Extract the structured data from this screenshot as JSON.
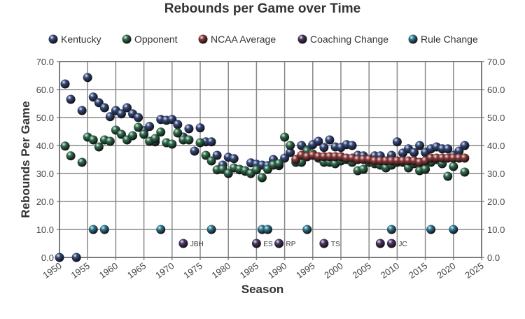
{
  "chart_data": {
    "type": "scatter",
    "title": "Rebounds per Game over Time",
    "xlabel": "Season",
    "ylabel": "Rebounds Per Game",
    "xlim": [
      1950,
      2025
    ],
    "ylim": [
      0,
      70
    ],
    "xticks": [
      "1950",
      "1955",
      "1960",
      "1965",
      "1970",
      "1975",
      "1980",
      "1985",
      "1990",
      "1995",
      "2000",
      "2005",
      "2010",
      "2015",
      "2020",
      "2025"
    ],
    "yticks": [
      "0.0",
      "10.0",
      "20.0",
      "30.0",
      "40.0",
      "50.0",
      "60.0",
      "70.0"
    ],
    "grid": true,
    "legend_position": "top",
    "series": [
      {
        "name": "Kentucky",
        "color": "#34477a",
        "x": [
          1950,
          1951,
          1952,
          1953,
          1954,
          1955,
          1956,
          1957,
          1958,
          1959,
          1960,
          1961,
          1962,
          1963,
          1964,
          1965,
          1966,
          1967,
          1968,
          1969,
          1970,
          1971,
          1972,
          1973,
          1974,
          1975,
          1976,
          1977,
          1978,
          1979,
          1980,
          1981,
          1982,
          1983,
          1984,
          1985,
          1986,
          1987,
          1988,
          1989,
          1990,
          1991,
          1993,
          1994,
          1995,
          1996,
          1997,
          1998,
          1999,
          2000,
          2001,
          2002,
          2003,
          2004,
          2005,
          2006,
          2007,
          2008,
          2009,
          2010,
          2011,
          2012,
          2013,
          2014,
          2015,
          2016,
          2017,
          2018,
          2019,
          2020,
          2021,
          2022
        ],
        "y": [
          0,
          62,
          56.5,
          0,
          52.5,
          64.3,
          57.3,
          55.3,
          53.5,
          50.3,
          52.5,
          51.3,
          53.5,
          51.3,
          50,
          45.3,
          46.8,
          41.3,
          49.3,
          49,
          49.3,
          47.5,
          43,
          46,
          38,
          46.3,
          41.3,
          41.3,
          36.5,
          33,
          35.8,
          35.3,
          31.3,
          30.8,
          33.8,
          33.3,
          33,
          32.8,
          35,
          32.8,
          35.5,
          37.5,
          40,
          38.3,
          40.3,
          41.5,
          39.3,
          42,
          39.5,
          39.3,
          40.3,
          40,
          36.5,
          36.3,
          35,
          36.3,
          36.3,
          33.3,
          36.5,
          41.3,
          37.3,
          38.8,
          37.5,
          40,
          37.5,
          38.8,
          39.5,
          38.8,
          38.8,
          36.5,
          38,
          40
        ]
      },
      {
        "name": "Opponent",
        "color": "#2f6e4c",
        "x": [
          1951,
          1952,
          1954,
          1955,
          1956,
          1957,
          1958,
          1959,
          1960,
          1961,
          1962,
          1963,
          1964,
          1965,
          1966,
          1967,
          1968,
          1969,
          1970,
          1971,
          1972,
          1973,
          1975,
          1976,
          1977,
          1978,
          1979,
          1980,
          1981,
          1982,
          1983,
          1984,
          1985,
          1986,
          1987,
          1988,
          1989,
          1990,
          1991,
          1992,
          1993,
          1994,
          1995,
          1996,
          1997,
          1998,
          1999,
          2000,
          2001,
          2002,
          2003,
          2004,
          2005,
          2006,
          2007,
          2008,
          2009,
          2010,
          2011,
          2012,
          2013,
          2014,
          2015,
          2016,
          2017,
          2018,
          2019,
          2020,
          2021,
          2022
        ],
        "y": [
          39.8,
          36.3,
          34,
          43,
          42,
          39.5,
          42,
          41.5,
          45.5,
          44,
          42,
          43.5,
          46.5,
          44,
          41.5,
          42.5,
          44.8,
          41,
          40.5,
          44.5,
          42,
          42,
          41,
          36.5,
          34.5,
          31.3,
          31.5,
          30,
          32,
          31.5,
          31,
          30,
          31.3,
          28.5,
          31.5,
          33,
          33.5,
          43,
          40,
          34,
          34,
          38,
          37,
          35.5,
          34,
          34,
          33.5,
          34.5,
          35,
          34,
          31,
          31.5,
          34,
          33.5,
          33,
          32,
          33,
          34,
          34,
          32,
          33.5,
          31,
          31.5,
          34,
          35,
          33.5,
          29,
          32.5,
          35.5,
          30.5
        ]
      },
      {
        "name": "NCAA Average",
        "color": "#8e3838",
        "x": [
          1992,
          1993,
          1994,
          1995,
          1996,
          1997,
          1998,
          1999,
          2000,
          2001,
          2002,
          2003,
          2004,
          2005,
          2006,
          2007,
          2008,
          2009,
          2010,
          2011,
          2012,
          2013,
          2014,
          2015,
          2016,
          2017,
          2018,
          2019,
          2020,
          2021,
          2022
        ],
        "y": [
          35,
          36.5,
          36,
          36.5,
          36,
          36,
          36,
          36,
          36,
          35.5,
          35.5,
          35,
          35,
          35,
          34.5,
          34.5,
          34.5,
          34.5,
          34.5,
          34.5,
          34.5,
          34.5,
          34,
          34.5,
          35.5,
          35.5,
          35.5,
          35.5,
          35.5,
          35.5,
          35.5
        ]
      },
      {
        "name": "Coaching Change",
        "color": "#4d3566",
        "x": [
          1972,
          1985,
          1989,
          1997,
          2007,
          2009
        ],
        "y": [
          5,
          5,
          5,
          5,
          5,
          5
        ],
        "labels": [
          "JBH",
          "ES",
          "RP",
          "TS",
          "",
          "JC"
        ]
      },
      {
        "name": "Rule Change",
        "color": "#2f7893",
        "x": [
          1956,
          1958,
          1968,
          1977,
          1986,
          1987,
          1994,
          2009,
          2016,
          2020
        ],
        "y": [
          10,
          10,
          10,
          10,
          10,
          10,
          10,
          10,
          10,
          10
        ]
      }
    ]
  }
}
